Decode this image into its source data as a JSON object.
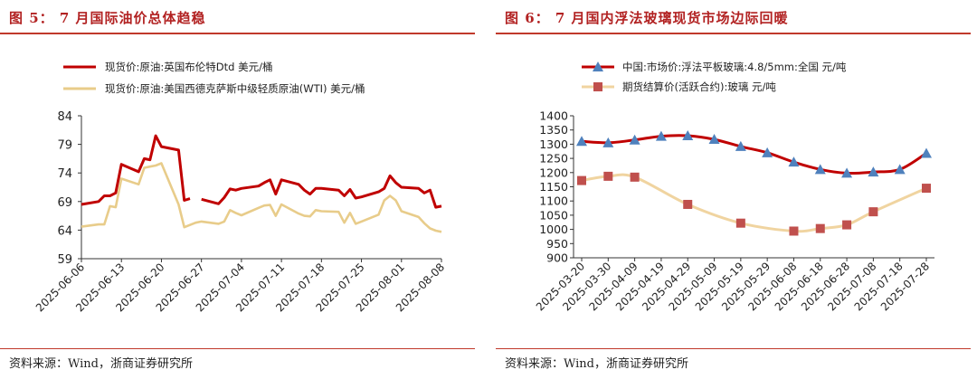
{
  "left": {
    "title": "图 5：  7 月国际油价总体趋稳",
    "source": "资料来源：Wind，浙商证券研究所",
    "chart_data": {
      "type": "line",
      "title": "",
      "xlabel": "",
      "ylabel": "",
      "ylim": [
        59,
        84
      ],
      "yticks": [
        59,
        64,
        69,
        74,
        79,
        84
      ],
      "xlim": [
        "2025-06-06",
        "2025-08-08"
      ],
      "xticks": [
        "2025-06-06",
        "2025-06-13",
        "2025-06-20",
        "2025-06-27",
        "2025-07-04",
        "2025-07-11",
        "2025-07-18",
        "2025-07-25",
        "2025-08-01",
        "2025-08-08"
      ],
      "legend_position": "top-left",
      "grid": false,
      "series": [
        {
          "name": "现货价:原油:英国布伦特Dtd 美元/桶",
          "color": "#c00000",
          "points": [
            [
              "2025-06-06",
              68.5
            ],
            [
              "2025-06-09",
              69.0
            ],
            [
              "2025-06-10",
              70.0
            ],
            [
              "2025-06-11",
              70.0
            ],
            [
              "2025-06-12",
              70.5
            ],
            [
              "2025-06-13",
              75.5
            ],
            [
              "2025-06-16",
              74.2
            ],
            [
              "2025-06-17",
              76.5
            ],
            [
              "2025-06-18",
              76.3
            ],
            [
              "2025-06-19",
              80.5
            ],
            [
              "2025-06-20",
              78.6
            ],
            [
              "2025-06-23",
              78.0
            ],
            [
              "2025-06-24",
              69.2
            ],
            [
              "2025-06-25",
              69.5
            ],
            null,
            [
              "2025-06-27",
              69.4
            ],
            [
              "2025-06-30",
              68.6
            ],
            [
              "2025-07-01",
              69.7
            ],
            [
              "2025-07-02",
              71.2
            ],
            [
              "2025-07-03",
              71.0
            ],
            [
              "2025-07-04",
              71.3
            ],
            [
              "2025-07-07",
              71.7
            ],
            [
              "2025-07-08",
              72.3
            ],
            [
              "2025-07-09",
              72.8
            ],
            [
              "2025-07-10",
              70.3
            ],
            [
              "2025-07-11",
              72.8
            ],
            [
              "2025-07-14",
              72.0
            ],
            [
              "2025-07-15",
              71.0
            ],
            [
              "2025-07-16",
              70.3
            ],
            [
              "2025-07-17",
              71.3
            ],
            [
              "2025-07-18",
              71.3
            ],
            [
              "2025-07-21",
              71.0
            ],
            [
              "2025-07-22",
              70.0
            ],
            [
              "2025-07-23",
              71.1
            ],
            [
              "2025-07-24",
              69.6
            ],
            [
              "2025-07-25",
              69.8
            ],
            [
              "2025-07-28",
              70.7
            ],
            [
              "2025-07-29",
              71.3
            ],
            [
              "2025-07-30",
              73.5
            ],
            [
              "2025-07-31",
              72.3
            ],
            [
              "2025-08-01",
              71.5
            ],
            [
              "2025-08-04",
              71.3
            ],
            [
              "2025-08-05",
              70.5
            ],
            [
              "2025-08-06",
              71.0
            ],
            [
              "2025-08-07",
              68.0
            ],
            [
              "2025-08-08",
              68.2
            ]
          ]
        },
        {
          "name": "现货价:原油:美国西德克萨斯中级轻质原油(WTI) 美元/桶",
          "color": "#e8cc8a",
          "points": [
            [
              "2025-06-06",
              64.6
            ],
            [
              "2025-06-09",
              65.0
            ],
            [
              "2025-06-10",
              65.0
            ],
            [
              "2025-06-11",
              68.2
            ],
            [
              "2025-06-12",
              68.0
            ],
            [
              "2025-06-13",
              73.0
            ],
            [
              "2025-06-16",
              72.0
            ],
            [
              "2025-06-17",
              74.9
            ],
            [
              "2025-06-18",
              75.1
            ],
            [
              "2025-06-19",
              75.3
            ],
            [
              "2025-06-20",
              75.7
            ],
            [
              "2025-06-23",
              68.5
            ],
            [
              "2025-06-24",
              64.5
            ],
            [
              "2025-06-25",
              64.9
            ],
            [
              "2025-06-26",
              65.3
            ],
            [
              "2025-06-27",
              65.5
            ],
            [
              "2025-06-30",
              65.1
            ],
            [
              "2025-07-01",
              65.5
            ],
            [
              "2025-07-02",
              67.5
            ],
            [
              "2025-07-03",
              67.0
            ],
            [
              "2025-07-04",
              66.6
            ],
            [
              "2025-07-07",
              67.9
            ],
            [
              "2025-07-08",
              68.3
            ],
            [
              "2025-07-09",
              68.4
            ],
            [
              "2025-07-10",
              66.5
            ],
            [
              "2025-07-11",
              68.5
            ],
            [
              "2025-07-14",
              66.9
            ],
            [
              "2025-07-15",
              66.5
            ],
            [
              "2025-07-16",
              66.4
            ],
            [
              "2025-07-17",
              67.5
            ],
            [
              "2025-07-18",
              67.3
            ],
            [
              "2025-07-21",
              67.2
            ],
            [
              "2025-07-22",
              65.3
            ],
            [
              "2025-07-23",
              67.0
            ],
            [
              "2025-07-24",
              65.1
            ],
            [
              "2025-07-25",
              65.5
            ],
            [
              "2025-07-28",
              66.7
            ],
            [
              "2025-07-29",
              69.2
            ],
            [
              "2025-07-30",
              70.0
            ],
            [
              "2025-07-31",
              69.2
            ],
            [
              "2025-08-01",
              67.3
            ],
            [
              "2025-08-04",
              66.3
            ],
            [
              "2025-08-05",
              65.2
            ],
            [
              "2025-08-06",
              64.3
            ],
            [
              "2025-08-07",
              63.9
            ],
            [
              "2025-08-08",
              63.7
            ]
          ]
        }
      ]
    }
  },
  "right": {
    "title": "图 6：  7 月国内浮法玻璃现货市场边际回暖",
    "source": "资料来源：Wind，浙商证券研究所",
    "chart_data": {
      "type": "line",
      "title": "",
      "xlabel": "",
      "ylabel": "",
      "ylim": [
        900,
        1400
      ],
      "yticks": [
        900,
        950,
        1000,
        1050,
        1100,
        1150,
        1200,
        1250,
        1300,
        1350,
        1400
      ],
      "categories": [
        "2025-03-20",
        "2025-03-30",
        "2025-04-09",
        "2025-04-19",
        "2025-04-29",
        "2025-05-09",
        "2025-05-19",
        "2025-05-29",
        "2025-06-08",
        "2025-06-18",
        "2025-06-28",
        "2025-07-08",
        "2025-07-18",
        "2025-07-28"
      ],
      "legend_position": "top-left",
      "grid": false,
      "series": [
        {
          "name": "中国:市场价:浮法平板玻璃:4.8/5mm:全国 元/吨",
          "color": "#c00000",
          "marker": "triangle",
          "marker_color": "#4f81bd",
          "points": [
            [
              "2025-03-20",
              1310
            ],
            [
              "2025-03-30",
              1305
            ],
            [
              "2025-04-09",
              1315
            ],
            [
              "2025-04-19",
              1328
            ],
            [
              "2025-04-29",
              1330
            ],
            [
              "2025-05-09",
              1317
            ],
            [
              "2025-05-19",
              1292
            ],
            [
              "2025-05-29",
              1270
            ],
            [
              "2025-06-08",
              1237
            ],
            [
              "2025-06-18",
              1211
            ],
            [
              "2025-06-28",
              1198
            ],
            [
              "2025-07-08",
              1202
            ],
            [
              "2025-07-18",
              1211
            ],
            [
              "2025-07-28",
              1268
            ]
          ]
        },
        {
          "name": "期货结算价(活跃合约):玻璃 元/吨",
          "color": "#f0d4a0",
          "marker": "square",
          "marker_color": "#c0504d",
          "points": [
            [
              "2025-03-20",
              1172
            ],
            [
              "2025-03-30",
              1187
            ],
            [
              "2025-04-09",
              1184
            ],
            [
              "2025-04-29",
              1088
            ],
            [
              "2025-05-19",
              1022
            ],
            [
              "2025-06-08",
              994
            ],
            [
              "2025-06-18",
              1003
            ],
            [
              "2025-06-28",
              1016
            ],
            [
              "2025-07-08",
              1062
            ],
            [
              "2025-07-28",
              1145
            ]
          ]
        }
      ]
    }
  }
}
